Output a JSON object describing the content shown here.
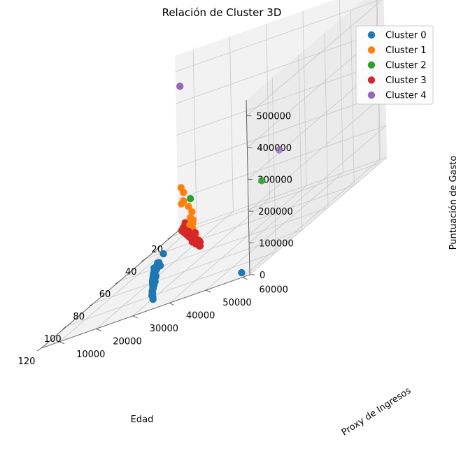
{
  "chart_data": {
    "type": "scatter",
    "projection": "3d",
    "title": "Relación de Cluster 3D",
    "xlabel": "Edad",
    "ylabel": "Proxy de Ingresos",
    "zlabel": "Puntuación de Gasto",
    "xlim": [
      15,
      120
    ],
    "ylim": [
      5000,
      62000
    ],
    "zlim": [
      0,
      550000
    ],
    "x_ticks": [
      20,
      40,
      60,
      80,
      100,
      120
    ],
    "y_ticks": [
      10000,
      20000,
      30000,
      40000,
      50000,
      60000
    ],
    "z_ticks": [
      0,
      100000,
      200000,
      300000,
      400000,
      500000
    ],
    "grid": true,
    "legend": "top-right",
    "series": [
      {
        "name": "Cluster 0",
        "color": "#1f77b4",
        "points": [
          [
            55,
            14000,
            4000
          ],
          [
            58,
            14500,
            3500
          ],
          [
            60,
            15000,
            4200
          ],
          [
            62,
            15500,
            3800
          ],
          [
            64,
            16000,
            4500
          ],
          [
            65,
            16800,
            5000
          ],
          [
            67,
            17000,
            4300
          ],
          [
            69,
            17500,
            4800
          ],
          [
            70,
            18200,
            5200
          ],
          [
            72,
            18500,
            4600
          ],
          [
            73,
            19200,
            5500
          ],
          [
            75,
            19500,
            5100
          ],
          [
            76,
            20300,
            5800
          ],
          [
            78,
            20500,
            5200
          ],
          [
            79,
            21200,
            6000
          ],
          [
            81,
            21500,
            5700
          ],
          [
            82,
            22300,
            6200
          ],
          [
            84,
            22600,
            5900
          ],
          [
            85,
            23300,
            6500
          ],
          [
            87,
            23700,
            6100
          ],
          [
            88,
            24400,
            6800
          ],
          [
            90,
            24800,
            6400
          ],
          [
            92,
            25600,
            7000
          ],
          [
            94,
            26200,
            6900
          ],
          [
            96,
            26800,
            7300
          ],
          [
            98,
            27500,
            7200
          ],
          [
            100,
            28300,
            7600
          ],
          [
            103,
            29200,
            8000
          ],
          [
            106,
            30500,
            8400
          ],
          [
            110,
            32000,
            9000
          ],
          [
            71,
            21000,
            60000
          ],
          [
            68,
            19000,
            20000
          ],
          [
            66,
            17500,
            12000
          ],
          [
            80,
            22000,
            14000
          ],
          [
            86,
            24000,
            13000
          ],
          [
            77,
            21000,
            11000
          ],
          [
            63,
            15500,
            9000
          ],
          [
            57,
            14300,
            8000
          ],
          [
            115,
            58000,
            5000
          ]
        ]
      },
      {
        "name": "Cluster 1",
        "color": "#ff7f0e",
        "points": [
          [
            20,
            9000,
            14000
          ],
          [
            21,
            10500,
            20000
          ],
          [
            22,
            11000,
            10000
          ],
          [
            23,
            11800,
            24000
          ],
          [
            25,
            12500,
            12000
          ],
          [
            24,
            10000,
            30000
          ],
          [
            26,
            11500,
            26000
          ],
          [
            27,
            12800,
            16000
          ],
          [
            30,
            14000,
            19000
          ],
          [
            33,
            15500,
            14000
          ],
          [
            36,
            17000,
            15000
          ],
          [
            38,
            18000,
            12000
          ],
          [
            22,
            8500,
            95000
          ],
          [
            24,
            9200,
            150000
          ],
          [
            26,
            10500,
            110000
          ],
          [
            30,
            12000,
            145000
          ],
          [
            32,
            14000,
            100000
          ],
          [
            35,
            16000,
            85000
          ],
          [
            40,
            18000,
            70000
          ],
          [
            28,
            13000,
            55000
          ],
          [
            34,
            15000,
            45000
          ],
          [
            37,
            16500,
            40000
          ]
        ]
      },
      {
        "name": "Cluster 2",
        "color": "#2ca02c",
        "points": [
          [
            36,
            16000,
            130000
          ],
          [
            54,
            42000,
            145000
          ]
        ]
      },
      {
        "name": "Cluster 3",
        "color": "#d62728",
        "points": [
          [
            18,
            7000,
            3000
          ],
          [
            19,
            7500,
            5000
          ],
          [
            20,
            8000,
            4000
          ],
          [
            21,
            8500,
            6000
          ],
          [
            22,
            9000,
            3500
          ],
          [
            23,
            9500,
            5500
          ],
          [
            24,
            10000,
            4200
          ],
          [
            25,
            10500,
            6100
          ],
          [
            26,
            11000,
            4700
          ],
          [
            27,
            11500,
            5300
          ],
          [
            28,
            12000,
            3900
          ],
          [
            29,
            12500,
            6200
          ],
          [
            30,
            13000,
            4800
          ],
          [
            31,
            13500,
            5600
          ],
          [
            32,
            14000,
            4100
          ],
          [
            33,
            14500,
            6300
          ],
          [
            34,
            15000,
            5000
          ],
          [
            35,
            15500,
            5900
          ],
          [
            36,
            16000,
            4400
          ],
          [
            37,
            16500,
            6400
          ],
          [
            38,
            17000,
            5100
          ],
          [
            39,
            17500,
            6000
          ],
          [
            40,
            18000,
            4600
          ],
          [
            41,
            18500,
            6500
          ],
          [
            42,
            19000,
            5200
          ],
          [
            43,
            19500,
            6100
          ],
          [
            44,
            20000,
            4700
          ],
          [
            45,
            20500,
            6600
          ],
          [
            46,
            21000,
            5300
          ],
          [
            47,
            21500,
            6200
          ],
          [
            48,
            22000,
            4900
          ],
          [
            49,
            22500,
            6700
          ],
          [
            50,
            23000,
            5400
          ],
          [
            51,
            23500,
            6300
          ],
          [
            52,
            24000,
            5000
          ],
          [
            53,
            24500,
            6800
          ],
          [
            20,
            9000,
            18000
          ],
          [
            24,
            10000,
            20000
          ],
          [
            27,
            11500,
            17000
          ],
          [
            31,
            13000,
            19000
          ],
          [
            34,
            14500,
            16000
          ],
          [
            38,
            16500,
            18000
          ],
          [
            41,
            18000,
            20000
          ],
          [
            45,
            19500,
            17000
          ],
          [
            49,
            21000,
            19000
          ],
          [
            52,
            23000,
            16000
          ],
          [
            28,
            11000,
            30000
          ],
          [
            35,
            15000,
            28000
          ],
          [
            42,
            18500,
            27000
          ],
          [
            47,
            20500,
            29000
          ],
          [
            53,
            23500,
            31000
          ],
          [
            55,
            25000,
            29000
          ],
          [
            57,
            26000,
            27000
          ],
          [
            44,
            20000,
            35000
          ],
          [
            25,
            10500,
            38000
          ],
          [
            39,
            17000,
            24000
          ]
        ]
      },
      {
        "name": "Cluster 4",
        "color": "#9467bd",
        "points": [
          [
            20,
            8000,
            460000
          ],
          [
            46,
            44000,
            205000
          ]
        ]
      }
    ]
  }
}
